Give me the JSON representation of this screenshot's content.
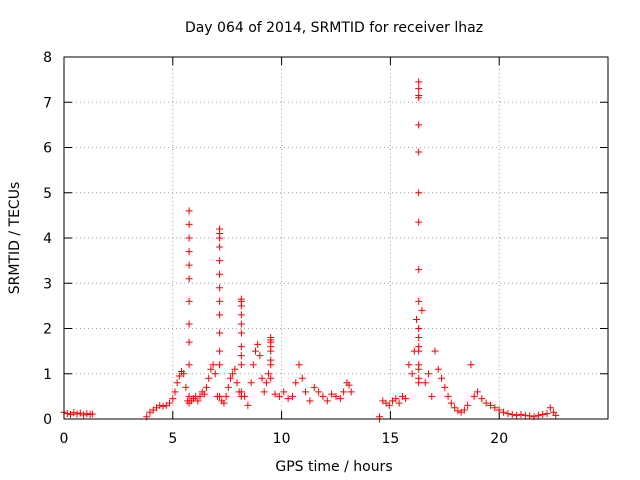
{
  "chart_data": {
    "type": "scatter",
    "title": "Day 064 of 2014, SRMTID for receiver lhaz",
    "xlabel": "GPS time / hours",
    "ylabel": "SRMTID / TECUs",
    "xlim": [
      0,
      25
    ],
    "ylim": [
      0,
      8
    ],
    "xticks": [
      0,
      5,
      10,
      15,
      20
    ],
    "yticks": [
      0,
      1,
      2,
      3,
      4,
      5,
      6,
      7,
      8
    ],
    "grid": true,
    "marker": "+",
    "series_color": "#ff0000",
    "series": [
      {
        "name": "SRMTID",
        "x": [
          0.0,
          0.15,
          0.3,
          0.45,
          0.6,
          0.75,
          0.9,
          1.05,
          1.2,
          1.3,
          3.8,
          3.95,
          4.1,
          4.25,
          4.4,
          4.55,
          4.7,
          4.85,
          5.0,
          5.1,
          5.2,
          5.3,
          5.4,
          5.5,
          5.6,
          5.68,
          5.75,
          5.75,
          5.75,
          5.75,
          5.75,
          5.75,
          5.75,
          5.75,
          5.75,
          5.75,
          5.75,
          5.75,
          5.85,
          5.95,
          6.05,
          6.15,
          6.25,
          6.35,
          6.45,
          6.55,
          6.65,
          6.75,
          6.85,
          6.95,
          7.05,
          7.15,
          7.15,
          7.15,
          7.15,
          7.15,
          7.15,
          7.15,
          7.15,
          7.15,
          7.15,
          7.15,
          7.15,
          7.15,
          7.25,
          7.35,
          7.45,
          7.55,
          7.65,
          7.75,
          7.85,
          7.95,
          8.05,
          8.15,
          8.15,
          8.15,
          8.15,
          8.15,
          8.15,
          8.15,
          8.15,
          8.15,
          8.15,
          8.15,
          8.3,
          8.45,
          8.6,
          8.7,
          8.8,
          8.9,
          9.0,
          9.1,
          9.2,
          9.3,
          9.4,
          9.5,
          9.5,
          9.5,
          9.5,
          9.5,
          9.5,
          9.5,
          9.5,
          9.7,
          9.9,
          10.1,
          10.3,
          10.5,
          10.65,
          10.8,
          10.95,
          11.1,
          11.3,
          11.5,
          11.7,
          11.9,
          12.1,
          12.3,
          12.5,
          12.7,
          12.85,
          13.0,
          13.1,
          13.2,
          14.5,
          14.5,
          14.65,
          14.8,
          14.95,
          15.1,
          15.25,
          15.4,
          15.55,
          15.7,
          15.85,
          16.0,
          16.1,
          16.2,
          16.3,
          16.3,
          16.3,
          16.3,
          16.3,
          16.3,
          16.3,
          16.3,
          16.3,
          16.3,
          16.3,
          16.3,
          16.3,
          16.3,
          16.3,
          16.3,
          16.3,
          16.3,
          16.45,
          16.6,
          16.75,
          16.9,
          17.05,
          17.2,
          17.35,
          17.5,
          17.65,
          17.8,
          17.95,
          18.1,
          18.25,
          18.4,
          18.55,
          18.7,
          18.85,
          19.0,
          19.2,
          19.4,
          19.6,
          19.8,
          20.0,
          20.2,
          20.4,
          20.6,
          20.8,
          21.0,
          21.2,
          21.4,
          21.6,
          21.8,
          22.0,
          22.2,
          22.35,
          22.5,
          22.6
        ],
        "y": [
          0.15,
          0.12,
          0.1,
          0.14,
          0.11,
          0.13,
          0.09,
          0.12,
          0.1,
          0.11,
          0.05,
          0.15,
          0.2,
          0.25,
          0.3,
          0.28,
          0.3,
          0.35,
          0.45,
          0.6,
          0.8,
          0.95,
          1.05,
          1.0,
          0.7,
          0.4,
          0.5,
          1.2,
          1.7,
          2.1,
          2.6,
          3.1,
          3.4,
          3.7,
          4.0,
          4.3,
          4.6,
          0.35,
          0.4,
          0.45,
          0.5,
          0.4,
          0.5,
          0.6,
          0.55,
          0.7,
          0.9,
          1.1,
          1.2,
          1.0,
          0.5,
          0.5,
          1.2,
          1.5,
          1.9,
          2.3,
          2.6,
          2.9,
          3.2,
          3.5,
          3.8,
          4.0,
          4.2,
          4.1,
          0.4,
          0.35,
          0.5,
          0.7,
          0.9,
          1.0,
          1.1,
          0.8,
          0.6,
          0.5,
          1.2,
          1.6,
          1.9,
          2.1,
          2.3,
          2.5,
          2.6,
          2.65,
          1.4,
          0.6,
          0.5,
          0.3,
          0.8,
          1.2,
          1.5,
          1.65,
          1.4,
          0.9,
          0.6,
          0.8,
          1.0,
          0.9,
          1.3,
          1.5,
          1.7,
          1.8,
          1.75,
          1.6,
          1.2,
          0.55,
          0.5,
          0.6,
          0.45,
          0.5,
          0.8,
          1.2,
          0.9,
          0.6,
          0.4,
          0.7,
          0.6,
          0.5,
          0.4,
          0.55,
          0.5,
          0.45,
          0.6,
          0.8,
          0.75,
          0.6,
          0.05,
          0.0,
          0.4,
          0.35,
          0.3,
          0.4,
          0.45,
          0.35,
          0.5,
          0.45,
          1.2,
          1.0,
          1.5,
          2.2,
          0.8,
          1.2,
          1.5,
          2.0,
          2.6,
          3.3,
          4.35,
          5.0,
          5.9,
          6.5,
          7.1,
          7.15,
          7.3,
          7.45,
          1.8,
          1.6,
          1.1,
          0.9,
          2.4,
          0.8,
          1.0,
          0.5,
          1.5,
          1.1,
          0.9,
          0.7,
          0.5,
          0.35,
          0.25,
          0.18,
          0.15,
          0.2,
          0.3,
          1.2,
          0.5,
          0.6,
          0.45,
          0.35,
          0.3,
          0.25,
          0.2,
          0.15,
          0.12,
          0.1,
          0.08,
          0.1,
          0.08,
          0.07,
          0.05,
          0.08,
          0.1,
          0.12,
          0.25,
          0.15,
          0.08
        ]
      }
    ]
  }
}
